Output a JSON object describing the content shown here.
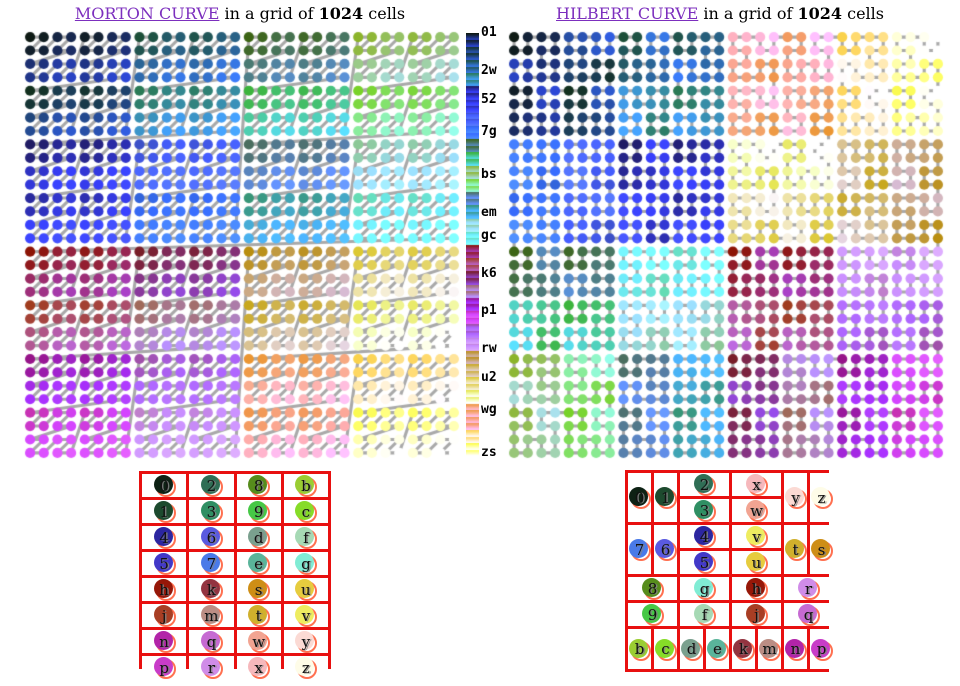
{
  "figures": {
    "morton": {
      "link": "MORTON CURVE",
      "mid": " in a grid of ",
      "bold": "1024",
      "tail": " cells",
      "curve": "morton"
    },
    "hilbert": {
      "link": "HILBERT CURVE",
      "mid": " in a grid of ",
      "bold": "1024",
      "tail": " cells",
      "curve": "hilbert"
    }
  },
  "grid": {
    "n": 32,
    "cells": 1024,
    "dot_radius": 5.1,
    "line_color": "rgba(150,150,150,0.82)",
    "line_width": 3.1
  },
  "palette": {
    "order": "0123456789bcdefghjkmnpqrstuvwxyz",
    "base": {
      "0": "#0e1a14",
      "1": "#12301e",
      "2": "#1c4f38",
      "3": "#2a7a55",
      "4": "#201c64",
      "5": "#2a2a9e",
      "6": "#3c50c8",
      "7": "#3264dc",
      "8": "#3c6414",
      "9": "#3cb43c",
      "b": "#8cb42a",
      "c": "#78d228",
      "d": "#4b6e5f",
      "e": "#379678",
      "f": "#8cc896",
      "g": "#64dcb4",
      "h": "#8c1405",
      "j": "#a03c1e",
      "k": "#781e28",
      "m": "#a06a5a",
      "n": "#961489",
      "p": "#c832b4",
      "q": "#a050aa",
      "r": "#c080cc",
      "s": "#b98e10",
      "t": "#c8a81e",
      "u": "#dcc832",
      "v": "#e6e655",
      "w": "#eb9632",
      "x": "#f0964b",
      "y": "#fad24b",
      "z": "#fafa50"
    },
    "disc": {
      "0": "#0d2114",
      "1": "#1d4a2e",
      "2": "#2f6e55",
      "3": "#2f8f63",
      "4": "#2c26a0",
      "5": "#4238c8",
      "6": "#5a5ae0",
      "7": "#4a7ae8",
      "8": "#568c1c",
      "9": "#46c846",
      "b": "#9acd32",
      "c": "#86dc28",
      "d": "#7aa08e",
      "e": "#5ab49a",
      "f": "#a6d9b4",
      "g": "#80ecd4",
      "h": "#961708",
      "j": "#a83e24",
      "k": "#933440",
      "m": "#bb8d84",
      "n": "#b224a8",
      "p": "#c83cc8",
      "q": "#c66ad2",
      "r": "#d08ce8",
      "s": "#ce8e16",
      "t": "#d0b02c",
      "u": "#e6cc3e",
      "v": "#eeec60",
      "w": "#f2a492",
      "x": "#f6b8bc",
      "y": "#fbdad4",
      "z": "#fefce8"
    },
    "boost": [
      30,
      45,
      195
    ]
  },
  "legend": {
    "max_index": 1023,
    "ticks": [
      {
        "label": "01",
        "index": 1
      },
      {
        "label": "2w",
        "index": 92
      },
      {
        "label": "52",
        "index": 162
      },
      {
        "label": "7g",
        "index": 239
      },
      {
        "label": "bs",
        "index": 344
      },
      {
        "label": "em",
        "index": 435
      },
      {
        "label": "gc",
        "index": 491
      },
      {
        "label": "k6",
        "index": 582
      },
      {
        "label": "p1",
        "index": 673
      },
      {
        "label": "rw",
        "index": 764
      },
      {
        "label": "u2",
        "index": 834
      },
      {
        "label": "wg",
        "index": 911
      },
      {
        "label": "zs",
        "index": 1016
      }
    ]
  },
  "tables": {
    "border_color": "#e81010",
    "ring_color": "#ff7050",
    "morton": {
      "rows": [
        [
          "0",
          "2",
          "8",
          "b"
        ],
        [
          "1",
          "3",
          "9",
          "c"
        ],
        [
          "4",
          "6",
          "d",
          "f"
        ],
        [
          "5",
          "7",
          "e",
          "g"
        ],
        [
          "h",
          "k",
          "s",
          "u"
        ],
        [
          "j",
          "m",
          "t",
          "v"
        ],
        [
          "n",
          "q",
          "w",
          "y"
        ],
        [
          "p",
          "r",
          "x",
          "z"
        ]
      ]
    },
    "hilbert": {
      "cells": [
        {
          "ch": "0",
          "col": 0,
          "row": 0,
          "w": 1,
          "h": 2
        },
        {
          "ch": "1",
          "col": 1,
          "row": 0,
          "w": 1,
          "h": 2
        },
        {
          "ch": "2",
          "col": 2,
          "row": 0,
          "w": 2,
          "h": 1
        },
        {
          "ch": "3",
          "col": 2,
          "row": 1,
          "w": 2,
          "h": 1
        },
        {
          "ch": "x",
          "col": 4,
          "row": 0,
          "w": 2,
          "h": 1
        },
        {
          "ch": "w",
          "col": 4,
          "row": 1,
          "w": 2,
          "h": 1
        },
        {
          "ch": "y",
          "col": 6,
          "row": 0,
          "w": 1,
          "h": 2
        },
        {
          "ch": "z",
          "col": 7,
          "row": 0,
          "w": 1,
          "h": 2
        },
        {
          "ch": "7",
          "col": 0,
          "row": 2,
          "w": 1,
          "h": 2
        },
        {
          "ch": "6",
          "col": 1,
          "row": 2,
          "w": 1,
          "h": 2
        },
        {
          "ch": "4",
          "col": 2,
          "row": 2,
          "w": 2,
          "h": 1
        },
        {
          "ch": "5",
          "col": 2,
          "row": 3,
          "w": 2,
          "h": 1
        },
        {
          "ch": "v",
          "col": 4,
          "row": 2,
          "w": 2,
          "h": 1
        },
        {
          "ch": "u",
          "col": 4,
          "row": 3,
          "w": 2,
          "h": 1
        },
        {
          "ch": "t",
          "col": 6,
          "row": 2,
          "w": 1,
          "h": 2
        },
        {
          "ch": "s",
          "col": 7,
          "row": 2,
          "w": 1,
          "h": 2
        },
        {
          "ch": "8",
          "col": 0,
          "row": 4,
          "w": 2,
          "h": 1
        },
        {
          "ch": "g",
          "col": 2,
          "row": 4,
          "w": 2,
          "h": 1
        },
        {
          "ch": "h",
          "col": 4,
          "row": 4,
          "w": 2,
          "h": 1
        },
        {
          "ch": "r",
          "col": 6,
          "row": 4,
          "w": 2,
          "h": 1
        },
        {
          "ch": "9",
          "col": 0,
          "row": 5,
          "w": 2,
          "h": 1
        },
        {
          "ch": "f",
          "col": 2,
          "row": 5,
          "w": 2,
          "h": 1
        },
        {
          "ch": "j",
          "col": 4,
          "row": 5,
          "w": 2,
          "h": 1
        },
        {
          "ch": "q",
          "col": 6,
          "row": 5,
          "w": 2,
          "h": 1
        },
        {
          "ch": "b",
          "col": 0,
          "row": 6,
          "w": 1,
          "h": 2
        },
        {
          "ch": "c",
          "col": 1,
          "row": 6,
          "w": 1,
          "h": 2
        },
        {
          "ch": "d",
          "col": 2,
          "row": 6,
          "w": 1,
          "h": 2
        },
        {
          "ch": "e",
          "col": 3,
          "row": 6,
          "w": 1,
          "h": 2
        },
        {
          "ch": "k",
          "col": 4,
          "row": 6,
          "w": 1,
          "h": 2
        },
        {
          "ch": "m",
          "col": 5,
          "row": 6,
          "w": 1,
          "h": 2
        },
        {
          "ch": "n",
          "col": 6,
          "row": 6,
          "w": 1,
          "h": 2
        },
        {
          "ch": "p",
          "col": 7,
          "row": 6,
          "w": 1,
          "h": 2
        }
      ]
    }
  },
  "colors": {
    "link": "#7c2fbe",
    "text": "#000000"
  }
}
